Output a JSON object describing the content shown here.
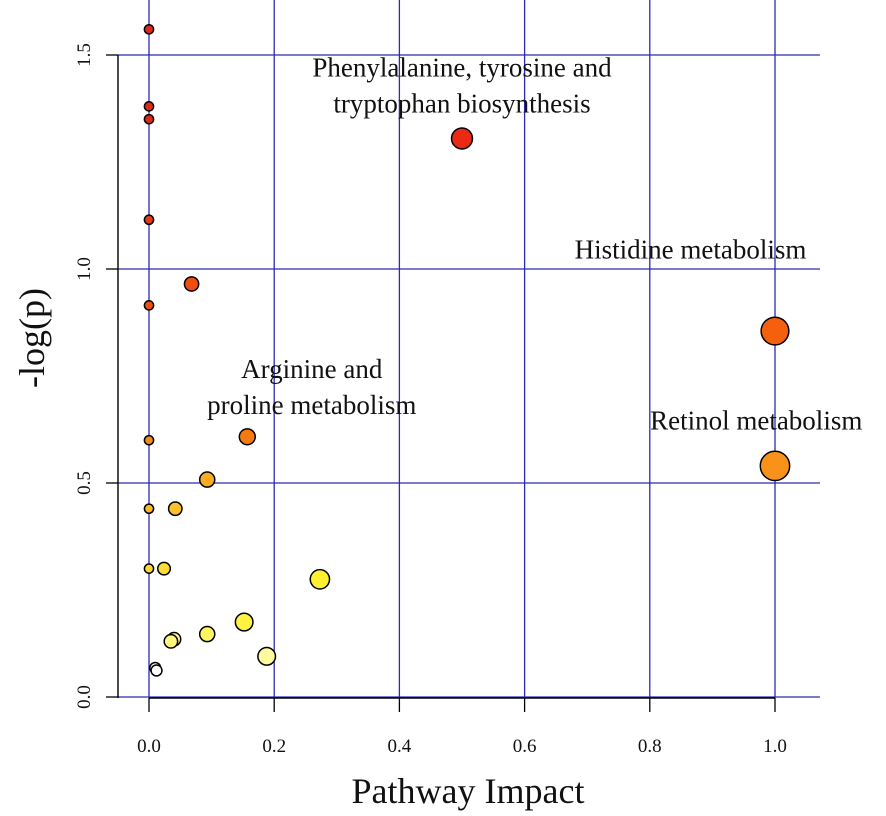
{
  "chart_data": {
    "type": "scatter",
    "title": "",
    "xlabel": "Pathway Impact",
    "ylabel": "-log(p)",
    "xlim": [
      -0.05,
      1.07
    ],
    "ylim": [
      -0.02,
      1.6
    ],
    "grid": true,
    "grid_color": "#2b2bb8",
    "x_ticks": [
      {
        "value": 0.0,
        "label": "0.0"
      },
      {
        "value": 0.2,
        "label": "0.2"
      },
      {
        "value": 0.4,
        "label": "0.4"
      },
      {
        "value": 0.6,
        "label": "0.6"
      },
      {
        "value": 0.8,
        "label": "0.8"
      },
      {
        "value": 1.0,
        "label": "1.0"
      }
    ],
    "y_ticks": [
      {
        "value": 0.0,
        "label": "0.0"
      },
      {
        "value": 0.5,
        "label": "0.5"
      },
      {
        "value": 1.0,
        "label": "1.0"
      },
      {
        "value": 1.5,
        "label": "1.5"
      }
    ],
    "points": [
      {
        "x": 0.0,
        "y": 1.56,
        "size": 1.0,
        "color": "#e0281a"
      },
      {
        "x": 0.0,
        "y": 1.38,
        "size": 1.0,
        "color": "#e0281a"
      },
      {
        "x": 0.0,
        "y": 1.35,
        "size": 1.0,
        "color": "#e0281a"
      },
      {
        "x": 0.5,
        "y": 1.305,
        "size": 2.4,
        "color": "#ea2a14"
      },
      {
        "x": 0.0,
        "y": 1.115,
        "size": 1.0,
        "color": "#e63a14"
      },
      {
        "x": 0.068,
        "y": 0.965,
        "size": 1.6,
        "color": "#ee4e10"
      },
      {
        "x": 0.0,
        "y": 0.915,
        "size": 1.0,
        "color": "#ee5212"
      },
      {
        "x": 1.0,
        "y": 0.855,
        "size": 3.2,
        "color": "#f5600e"
      },
      {
        "x": 0.157,
        "y": 0.608,
        "size": 1.8,
        "color": "#f57a10"
      },
      {
        "x": 0.0,
        "y": 0.6,
        "size": 1.0,
        "color": "#f58a18"
      },
      {
        "x": 1.0,
        "y": 0.54,
        "size": 3.4,
        "color": "#f8921a"
      },
      {
        "x": 0.093,
        "y": 0.508,
        "size": 1.7,
        "color": "#f9ac22"
      },
      {
        "x": 0.0,
        "y": 0.44,
        "size": 1.0,
        "color": "#fbb828"
      },
      {
        "x": 0.042,
        "y": 0.44,
        "size": 1.5,
        "color": "#fbc22a"
      },
      {
        "x": 0.0,
        "y": 0.3,
        "size": 1.0,
        "color": "#fdd834"
      },
      {
        "x": 0.024,
        "y": 0.3,
        "size": 1.4,
        "color": "#fddc36"
      },
      {
        "x": 0.273,
        "y": 0.275,
        "size": 2.2,
        "color": "#fff030"
      },
      {
        "x": 0.152,
        "y": 0.175,
        "size": 2.0,
        "color": "#fff240"
      },
      {
        "x": 0.093,
        "y": 0.147,
        "size": 1.7,
        "color": "#fff660"
      },
      {
        "x": 0.04,
        "y": 0.135,
        "size": 1.5,
        "color": "#fff880"
      },
      {
        "x": 0.035,
        "y": 0.13,
        "size": 1.5,
        "color": "#fff880"
      },
      {
        "x": 0.188,
        "y": 0.095,
        "size": 2.0,
        "color": "#fffaa0"
      },
      {
        "x": 0.01,
        "y": 0.068,
        "size": 1.2,
        "color": "#fffce0"
      },
      {
        "x": 0.012,
        "y": 0.062,
        "size": 1.2,
        "color": "#ffffff"
      }
    ],
    "annotations": [
      {
        "lines": [
          "Phenylalanine, tyrosine and",
          "tryptophan biosynthesis"
        ],
        "x": 0.5,
        "y": 1.45,
        "anchor": "middle"
      },
      {
        "lines": [
          "Histidine metabolism"
        ],
        "x": 0.865,
        "y": 1.025,
        "anchor": "middle"
      },
      {
        "lines": [
          "Arginine and",
          "proline metabolism"
        ],
        "x": 0.26,
        "y": 0.745,
        "anchor": "middle"
      },
      {
        "lines": [
          "Retinol metabolism"
        ],
        "x": 0.97,
        "y": 0.625,
        "anchor": "middle"
      }
    ]
  }
}
